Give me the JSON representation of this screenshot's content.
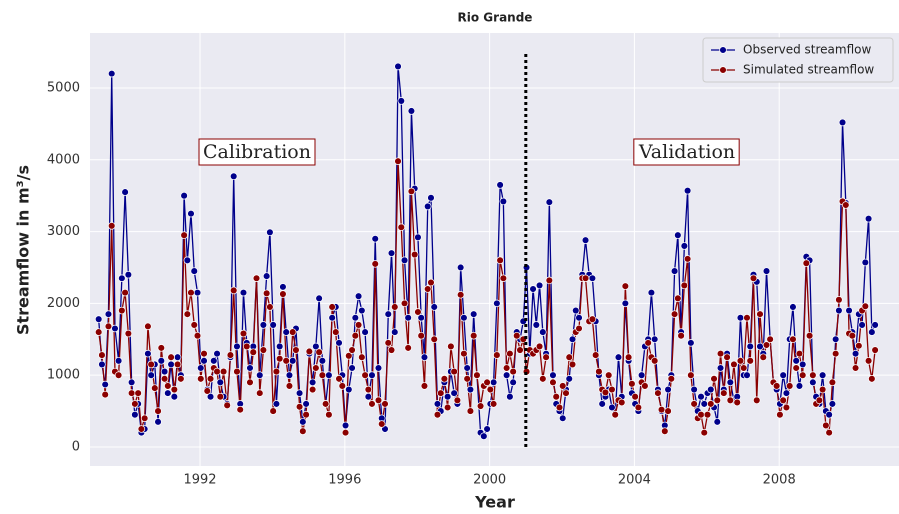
{
  "chart_data": {
    "type": "line",
    "title": "Rio Grande",
    "xlabel": "Year",
    "ylabel": "Streamflow in m³/s",
    "xlim": [
      1988.96,
      2011.31
    ],
    "ylim": [
      -265,
      5766
    ],
    "xticks": [
      1992,
      1996,
      2000,
      2004,
      2008
    ],
    "yticks": [
      0,
      1000,
      2000,
      3000,
      4000,
      5000
    ],
    "grid": true,
    "legend": "upper right",
    "vline": {
      "x": 2001,
      "y": [
        0,
        5500
      ]
    },
    "annotations": [
      "Calibration",
      "Validation"
    ],
    "x": [
      1989.2,
      1989.29,
      1989.38,
      1989.47,
      1989.56,
      1989.65,
      1989.75,
      1989.84,
      1989.93,
      1990.02,
      1990.11,
      1990.2,
      1990.29,
      1990.38,
      1990.47,
      1990.56,
      1990.65,
      1990.75,
      1990.84,
      1990.93,
      1991.02,
      1991.11,
      1991.2,
      1991.29,
      1991.38,
      1991.47,
      1991.56,
      1991.65,
      1991.75,
      1991.84,
      1991.93,
      1992.02,
      1992.11,
      1992.2,
      1992.29,
      1992.38,
      1992.47,
      1992.56,
      1992.65,
      1992.75,
      1992.84,
      1992.93,
      1993.02,
      1993.11,
      1993.2,
      1993.29,
      1993.38,
      1993.47,
      1993.56,
      1993.65,
      1993.75,
      1993.84,
      1993.93,
      1994.02,
      1994.11,
      1994.2,
      1994.29,
      1994.38,
      1994.47,
      1994.56,
      1994.65,
      1994.75,
      1994.84,
      1994.93,
      1995.02,
      1995.11,
      1995.2,
      1995.29,
      1995.38,
      1995.47,
      1995.56,
      1995.65,
      1995.75,
      1995.84,
      1995.93,
      1996.02,
      1996.11,
      1996.2,
      1996.29,
      1996.38,
      1996.47,
      1996.56,
      1996.65,
      1996.75,
      1996.84,
      1996.93,
      1997.02,
      1997.11,
      1997.2,
      1997.29,
      1997.38,
      1997.47,
      1997.56,
      1997.65,
      1997.75,
      1997.84,
      1997.93,
      1998.02,
      1998.11,
      1998.2,
      1998.29,
      1998.38,
      1998.47,
      1998.56,
      1998.65,
      1998.75,
      1998.84,
      1998.93,
      1999.02,
      1999.11,
      1999.2,
      1999.29,
      1999.38,
      1999.47,
      1999.56,
      1999.65,
      1999.75,
      1999.84,
      1999.93,
      2000.02,
      2000.11,
      2000.2,
      2000.29,
      2000.38,
      2000.47,
      2000.56,
      2000.65,
      2000.75,
      2000.84,
      2000.93,
      2001.02,
      2001.11,
      2001.2,
      2001.29,
      2001.38,
      2001.47,
      2001.56,
      2001.65,
      2001.75,
      2001.84,
      2001.93,
      2002.02,
      2002.11,
      2002.2,
      2002.29,
      2002.38,
      2002.47,
      2002.56,
      2002.65,
      2002.75,
      2002.84,
      2002.93,
      2003.02,
      2003.11,
      2003.2,
      2003.29,
      2003.38,
      2003.47,
      2003.56,
      2003.65,
      2003.75,
      2003.84,
      2003.93,
      2004.02,
      2004.11,
      2004.2,
      2004.29,
      2004.38,
      2004.47,
      2004.56,
      2004.65,
      2004.75,
      2004.84,
      2004.93,
      2005.02,
      2005.11,
      2005.2,
      2005.29,
      2005.38,
      2005.47,
      2005.56,
      2005.65,
      2005.75,
      2005.84,
      2005.93,
      2006.02,
      2006.11,
      2006.2,
      2006.29,
      2006.38,
      2006.47,
      2006.56,
      2006.65,
      2006.75,
      2006.84,
      2006.93,
      2007.02,
      2007.11,
      2007.2,
      2007.29,
      2007.38,
      2007.47,
      2007.56,
      2007.65,
      2007.75,
      2007.84,
      2007.93,
      2008.02,
      2008.11,
      2008.2,
      2008.29,
      2008.38,
      2008.47,
      2008.56,
      2008.65,
      2008.75,
      2008.84,
      2008.93,
      2009.02,
      2009.11,
      2009.2,
      2009.29,
      2009.38,
      2009.47,
      2009.56,
      2009.65,
      2009.75,
      2009.84,
      2009.93,
      2010.02,
      2010.11,
      2010.2,
      2010.29,
      2010.38,
      2010.47,
      2010.56,
      2010.65
    ],
    "series": [
      {
        "name": "Observed streamflow",
        "color": "#00008b",
        "values": [
          1780,
          1150,
          870,
          1850,
          5200,
          1650,
          1200,
          2350,
          3550,
          2400,
          900,
          450,
          600,
          200,
          250,
          1300,
          1000,
          1150,
          350,
          1200,
          1050,
          750,
          1150,
          700,
          1250,
          1000,
          3500,
          2600,
          3250,
          2450,
          2150,
          1100,
          1200,
          800,
          700,
          1200,
          1300,
          900,
          700,
          600,
          1250,
          3770,
          1400,
          600,
          2150,
          1450,
          1100,
          1400,
          2350,
          1000,
          1700,
          2380,
          2990,
          1700,
          600,
          1400,
          2230,
          1600,
          1000,
          1200,
          1650,
          750,
          350,
          600,
          1300,
          900,
          1400,
          2070,
          1200,
          600,
          1000,
          1800,
          1950,
          1450,
          1000,
          300,
          800,
          1100,
          1800,
          2100,
          1900,
          1600,
          700,
          1000,
          2900,
          1100,
          400,
          250,
          1850,
          2700,
          1600,
          5300,
          4820,
          2600,
          1800,
          4680,
          3600,
          2920,
          1800,
          1250,
          3350,
          3470,
          1950,
          600,
          500,
          900,
          700,
          1050,
          750,
          600,
          2500,
          1800,
          1100,
          800,
          1850,
          1000,
          200,
          150,
          250,
          600,
          900,
          2000,
          3650,
          3420,
          1000,
          700,
          900,
          1600,
          1500,
          1750,
          2500,
          1300,
          2200,
          1700,
          2250,
          1600,
          1300,
          3410,
          1000,
          600,
          500,
          400,
          800,
          950,
          1500,
          1900,
          1800,
          2400,
          2880,
          2400,
          2350,
          1750,
          1000,
          600,
          700,
          800,
          550,
          450,
          1250,
          700,
          2000,
          1200,
          750,
          600,
          500,
          1000,
          1400,
          1500,
          2150,
          1500,
          800,
          500,
          300,
          800,
          1000,
          2450,
          2950,
          1600,
          2800,
          3570,
          1450,
          800,
          500,
          700,
          600,
          750,
          800,
          550,
          350,
          1100,
          800,
          1300,
          900,
          650,
          700,
          1800,
          1000,
          1000,
          1400,
          2400,
          2300,
          1400,
          1300,
          2450,
          1500,
          900,
          800,
          600,
          1000,
          750,
          1500,
          1950,
          1200,
          850,
          1150,
          2650,
          2600,
          900,
          700,
          600,
          1000,
          500,
          450,
          600,
          1500,
          1900,
          4520,
          3400,
          1900,
          1600,
          1300,
          1850,
          1700,
          2570,
          3180,
          1600,
          1700
        ]
      },
      {
        "name": "Simulated streamflow",
        "color": "#8b0000",
        "values": [
          1600,
          1280,
          730,
          1680,
          3080,
          1050,
          1000,
          1900,
          2150,
          1580,
          750,
          600,
          750,
          250,
          400,
          1680,
          1150,
          820,
          500,
          1380,
          950,
          850,
          1250,
          800,
          1150,
          950,
          2950,
          1850,
          2150,
          1700,
          1550,
          950,
          1300,
          780,
          950,
          1100,
          1050,
          700,
          1050,
          580,
          1280,
          2180,
          1050,
          520,
          1580,
          1400,
          900,
          1320,
          2350,
          750,
          1350,
          2140,
          1950,
          500,
          1050,
          1230,
          2130,
          1200,
          850,
          1600,
          1350,
          560,
          220,
          450,
          1330,
          800,
          1100,
          1320,
          1000,
          600,
          450,
          1950,
          1600,
          950,
          850,
          200,
          1270,
          1350,
          1550,
          1700,
          1250,
          1000,
          800,
          600,
          2550,
          650,
          320,
          600,
          1450,
          1350,
          1950,
          3980,
          3060,
          2000,
          1380,
          3560,
          2680,
          1880,
          1550,
          850,
          2200,
          2290,
          1500,
          450,
          750,
          950,
          550,
          1400,
          1050,
          650,
          2120,
          1300,
          950,
          500,
          1550,
          1000,
          570,
          850,
          900,
          800,
          600,
          1280,
          2600,
          2350,
          1100,
          1300,
          1050,
          1550,
          1350,
          1500,
          1050,
          1350,
          1300,
          1350,
          1400,
          950,
          1250,
          2320,
          900,
          700,
          550,
          850,
          750,
          1250,
          1150,
          1600,
          1650,
          2350,
          2350,
          1750,
          1780,
          1280,
          1050,
          800,
          760,
          1000,
          800,
          450,
          650,
          620,
          2240,
          1250,
          880,
          700,
          550,
          900,
          850,
          1450,
          1250,
          1200,
          750,
          520,
          220,
          500,
          950,
          1850,
          2070,
          1550,
          2250,
          2620,
          1000,
          600,
          400,
          450,
          200,
          450,
          600,
          950,
          650,
          1300,
          750,
          1250,
          650,
          1150,
          620,
          1200,
          1100,
          1800,
          1200,
          2350,
          650,
          1850,
          1250,
          1420,
          1500,
          900,
          850,
          450,
          650,
          550,
          850,
          1500,
          1100,
          1300,
          1000,
          2560,
          1550,
          1000,
          600,
          650,
          800,
          300,
          200,
          900,
          1300,
          2050,
          3420,
          3370,
          1580,
          1550,
          1100,
          1410,
          1900,
          1960,
          1200,
          950,
          1350
        ]
      }
    ]
  }
}
